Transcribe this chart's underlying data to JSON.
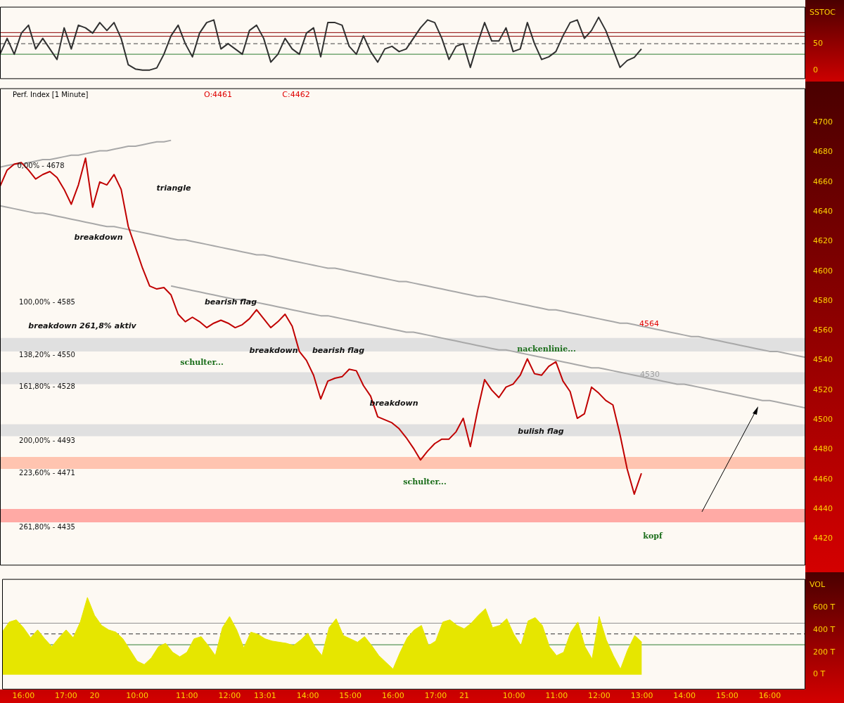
{
  "chart_data": [
    {
      "type": "line",
      "ylabel": "SSTOC",
      "ylim": [
        -17,
        120
      ],
      "yticks": [
        0,
        50
      ],
      "tick_labels": "y",
      "grid": false,
      "legend": false,
      "marker": "none",
      "series": [
        {
          "color": "#303030",
          "values": [
            30,
            60,
            30,
            70,
            85,
            40,
            60,
            40,
            20,
            80,
            40,
            85,
            80,
            70,
            90,
            75,
            90,
            60,
            10,
            2,
            0,
            0,
            4,
            30,
            65,
            85,
            50,
            25,
            70,
            90,
            95,
            40,
            50,
            40,
            30,
            75,
            85,
            60,
            15,
            30,
            60,
            40,
            30,
            70,
            80,
            25,
            90,
            90,
            85,
            45,
            30,
            65,
            35,
            15,
            40,
            45,
            35,
            40,
            60,
            80,
            95,
            90,
            60,
            20,
            45,
            50,
            5,
            50,
            90,
            55,
            55,
            80,
            35,
            40,
            90,
            50,
            20,
            25,
            35,
            65,
            90,
            95,
            60,
            75,
            100,
            75,
            40,
            5,
            18,
            24,
            40,
            null,
            null,
            null,
            null,
            null,
            null,
            null,
            null,
            null,
            null,
            null,
            null,
            null,
            null,
            null,
            null,
            null,
            null,
            null,
            null,
            null,
            null,
            null
          ]
        }
      ],
      "ref_lines": [
        {
          "axis": "y",
          "value": 71,
          "color": "#8b0000"
        },
        {
          "axis": "y",
          "value": 64,
          "color": "#8b0000"
        },
        {
          "axis": "y",
          "value": 50,
          "color": "#404040",
          "line_style": "dashed"
        },
        {
          "axis": "y",
          "value": 30,
          "color": "#2e7d32"
        }
      ]
    },
    {
      "type": "line",
      "title": "Perf. Index [1 Minute]",
      "ylim": [
        4402,
        4723
      ],
      "yticks": [
        4420,
        4440,
        4460,
        4480,
        4500,
        4520,
        4540,
        4560,
        4580,
        4600,
        4620,
        4640,
        4660,
        4680,
        4700
      ],
      "tick_labels": "y",
      "grid": false,
      "legend": false,
      "marker": "none",
      "series": [
        {
          "color": "#c00000",
          "values": [
            4657,
            4668,
            4672,
            4673,
            4668,
            4662,
            4665,
            4667,
            4663,
            4655,
            4645,
            4658,
            4676,
            4643,
            4660,
            4658,
            4665,
            4655,
            4630,
            4616,
            4602,
            4590,
            4588,
            4589,
            4584,
            4571,
            4566,
            4569,
            4566,
            4562,
            4565,
            4567,
            4565,
            4562,
            4564,
            4568,
            4574,
            4568,
            4562,
            4566,
            4571,
            4563,
            4546,
            4540,
            4530,
            4514,
            4526,
            4528,
            4529,
            4534,
            4533,
            4523,
            4516,
            4502,
            4500,
            4498,
            4494,
            4488,
            4481,
            4473,
            4479,
            4484,
            4487,
            4487,
            4492,
            4501,
            4482,
            4506,
            4527,
            4520,
            4515,
            4522,
            4524,
            4530,
            4541,
            4531,
            4530,
            4536,
            4539,
            4526,
            4519,
            4501,
            4504,
            4522,
            4518,
            4513,
            4510,
            4490,
            4467,
            4450,
            4464,
            null,
            null,
            null,
            null,
            null,
            null,
            null,
            null,
            null,
            null,
            null,
            null,
            null,
            null,
            null,
            null,
            null,
            null,
            null,
            null,
            null,
            null,
            null
          ]
        },
        {
          "color": "#a8a8a8",
          "values": [
            4670,
            4671,
            4672,
            4672,
            4673,
            4674,
            4675,
            4675,
            4676,
            4677,
            4678,
            4678,
            4679,
            4680,
            4681,
            4681,
            4682,
            4683,
            4684,
            4684,
            4685,
            4686,
            4687,
            4687,
            4688,
            null,
            null,
            null,
            null,
            null,
            null,
            null,
            null,
            null,
            null,
            null,
            null,
            null,
            null,
            null,
            null,
            null,
            null,
            null,
            null,
            null,
            null,
            null,
            null,
            null,
            null,
            null,
            null,
            null,
            null,
            null,
            null,
            null,
            null,
            null,
            null,
            null,
            null,
            null,
            null,
            null,
            null,
            null,
            null,
            null,
            null,
            null,
            null,
            null,
            null,
            null,
            null,
            null,
            null,
            null,
            null,
            null,
            null,
            null,
            null,
            null,
            null,
            null,
            null,
            null,
            null,
            null,
            null,
            null,
            null,
            null,
            null,
            null,
            null,
            null,
            null,
            null,
            null,
            null,
            null,
            null,
            null,
            null,
            null,
            null,
            null,
            null,
            null,
            null
          ]
        },
        {
          "color": "#a8a8a8",
          "values": [
            4644,
            4643,
            4642,
            4641,
            4640,
            4639,
            4639,
            4638,
            4637,
            4636,
            4635,
            4634,
            4633,
            4632,
            4631,
            4630,
            4630,
            4629,
            4628,
            4627,
            4626,
            4625,
            4624,
            4623,
            4622,
            4621,
            4621,
            4620,
            4619,
            4618,
            4617,
            4616,
            4615,
            4614,
            4613,
            4612,
            4611,
            4611,
            4610,
            4609,
            4608,
            4607,
            4606,
            4605,
            4604,
            4603,
            4602,
            4602,
            4601,
            4600,
            4599,
            4598,
            4597,
            4596,
            4595,
            4594,
            4593,
            4593,
            4592,
            4591,
            4590,
            4589,
            4588,
            4587,
            4586,
            4585,
            4584,
            4583,
            4583,
            4582,
            4581,
            4580,
            4579,
            4578,
            4577,
            4576,
            4575,
            4574,
            4574,
            4573,
            4572,
            4571,
            4570,
            4569,
            4568,
            4567,
            4566,
            4565,
            4565,
            4564,
            4563,
            4562,
            4561,
            4560,
            4559,
            4558,
            4557,
            4556,
            4556,
            4555,
            4554,
            4553,
            4552,
            4551,
            4550,
            4549,
            4548,
            4547,
            4546,
            4546,
            4545,
            4544,
            4543,
            4542
          ]
        },
        {
          "color": "#a8a8a8",
          "values": [
            null,
            null,
            null,
            null,
            null,
            null,
            null,
            null,
            null,
            null,
            null,
            null,
            null,
            null,
            null,
            null,
            null,
            null,
            null,
            null,
            null,
            null,
            null,
            null,
            4590,
            4589,
            4588,
            4587,
            4586,
            4585,
            4584,
            4583,
            4582,
            4581,
            4581,
            4580,
            4579,
            4578,
            4577,
            4576,
            4575,
            4574,
            4573,
            4572,
            4571,
            4570,
            4570,
            4569,
            4568,
            4567,
            4566,
            4565,
            4564,
            4563,
            4562,
            4561,
            4560,
            4559,
            4559,
            4558,
            4557,
            4556,
            4555,
            4554,
            4553,
            4552,
            4551,
            4550,
            4549,
            4548,
            4547,
            4547,
            4546,
            4545,
            4544,
            4543,
            4542,
            4541,
            4540,
            4539,
            4538,
            4537,
            4536,
            4535,
            4535,
            4534,
            4533,
            4532,
            4531,
            4530,
            4529,
            4528,
            4527,
            4526,
            4525,
            4524,
            4524,
            4523,
            4522,
            4521,
            4520,
            4519,
            4518,
            4517,
            4516,
            4515,
            4514,
            4513,
            4513,
            4512,
            4511,
            4510,
            4509,
            4508
          ]
        }
      ],
      "bands": [
        {
          "axis": "y",
          "from": 4546,
          "to": 4555,
          "color": "#e0e0e0"
        },
        {
          "axis": "y",
          "from": 4524,
          "to": 4532,
          "color": "#e0e0e0"
        },
        {
          "axis": "y",
          "from": 4489,
          "to": 4497,
          "color": "#e0e0e0"
        },
        {
          "axis": "y",
          "from": 4467,
          "to": 4475,
          "color": "#ffc4b0"
        },
        {
          "axis": "y",
          "from": 4431,
          "to": 4440,
          "color": "#ffaaa5"
        }
      ],
      "annotations": [
        "O:4461",
        "C:4462",
        "0,00% - 4678",
        "triangle",
        "breakdown",
        "100,00% - 4585",
        "bearish flag",
        "breakdown 261,8% aktiv",
        "breakdown",
        "bearish flag",
        "138,20% - 4550",
        "schulter...",
        "161,80% - 4528",
        "breakdown",
        "200,00% - 4493",
        "bulish flag",
        "223,60% - 4471",
        "schulter...",
        "261,80% - 4435",
        "nackenlinie...",
        "4564",
        "4530",
        "kopf"
      ]
    },
    {
      "type": "area",
      "ylabel": "VOL",
      "categories": [
        null,
        null,
        null,
        "16:00",
        null,
        null,
        null,
        null,
        null,
        "17:00",
        null,
        null,
        null,
        "20",
        null,
        null,
        null,
        null,
        null,
        "10:00",
        null,
        null,
        null,
        null,
        null,
        null,
        "11:00",
        null,
        null,
        null,
        null,
        null,
        "12:00",
        null,
        null,
        null,
        null,
        "13:01",
        null,
        null,
        null,
        null,
        null,
        "14:00",
        null,
        null,
        null,
        null,
        null,
        "15:00",
        null,
        null,
        null,
        null,
        null,
        "16:00",
        null,
        null,
        null,
        null,
        null,
        "17:00",
        null,
        null,
        null,
        "21",
        null,
        null,
        null,
        null,
        null,
        null,
        "10:00",
        null,
        null,
        null,
        null,
        null,
        "11:00",
        null,
        null,
        null,
        null,
        null,
        "12:00",
        null,
        null,
        null,
        null,
        null,
        "13:00",
        null,
        null,
        null,
        null,
        null,
        "14:00",
        null,
        null,
        null,
        null,
        null,
        "15:00",
        null,
        null,
        null,
        null,
        null,
        "16:00",
        null,
        null,
        null,
        null,
        null
      ],
      "ylim": [
        -133,
        855
      ],
      "yticks": [
        {
          "value": 0,
          "label": "0 T"
        },
        {
          "value": 200,
          "label": "200 T"
        },
        {
          "value": 400,
          "label": "400 T"
        },
        {
          "value": 600,
          "label": "600 T"
        }
      ],
      "grid": false,
      "legend": false,
      "marker": "none",
      "series": [
        {
          "color": "#e6e600",
          "values": [
            380,
            470,
            490,
            420,
            330,
            400,
            320,
            250,
            330,
            400,
            330,
            470,
            690,
            530,
            440,
            400,
            380,
            320,
            220,
            120,
            90,
            150,
            250,
            280,
            200,
            160,
            200,
            320,
            340,
            260,
            170,
            420,
            520,
            400,
            240,
            380,
            360,
            320,
            300,
            290,
            280,
            260,
            310,
            370,
            250,
            170,
            420,
            500,
            350,
            320,
            290,
            340,
            260,
            170,
            110,
            50,
            200,
            330,
            400,
            440,
            260,
            300,
            470,
            490,
            440,
            410,
            460,
            530,
            590,
            420,
            440,
            500,
            360,
            260,
            480,
            510,
            440,
            250,
            170,
            200,
            380,
            470,
            250,
            140,
            520,
            310,
            170,
            50,
            220,
            350,
            290,
            null,
            null,
            null,
            null,
            null,
            null,
            null,
            null,
            null,
            null,
            null,
            null,
            null,
            null,
            null,
            null,
            null,
            null,
            null,
            null,
            null,
            null,
            null
          ]
        }
      ],
      "ref_lines": [
        {
          "axis": "y",
          "value": 460,
          "color": "#909090"
        },
        {
          "axis": "y",
          "value": 364,
          "color": "#303030",
          "line_style": "dashed"
        },
        {
          "axis": "y",
          "value": 267,
          "color": "#2e7d32"
        }
      ]
    }
  ]
}
